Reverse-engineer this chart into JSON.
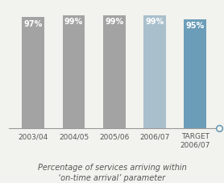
{
  "categories": [
    "2003/04",
    "2004/05",
    "2005/06",
    "2006/07",
    "TARGET\n2006/07"
  ],
  "values": [
    97,
    99,
    99,
    99,
    95
  ],
  "bar_colors": [
    "#a3a3a3",
    "#a3a3a3",
    "#a3a3a3",
    "#aabfcc",
    "#6b9db8"
  ],
  "label_texts": [
    "97%",
    "99%",
    "99%",
    "99%",
    "95%"
  ],
  "caption_line1": "Percentage of services arriving within",
  "caption_line2": "‘on-time arrival’ parameter",
  "ylim": [
    0,
    108
  ],
  "bar_width": 0.55,
  "background_color": "#f2f2ee",
  "label_color": "#ffffff",
  "label_fontsize": 7.0,
  "tick_fontsize": 6.5,
  "caption_fontsize": 7.0,
  "axis_color": "#999999",
  "circle_color": "#6b9db8",
  "text_color": "#555555"
}
